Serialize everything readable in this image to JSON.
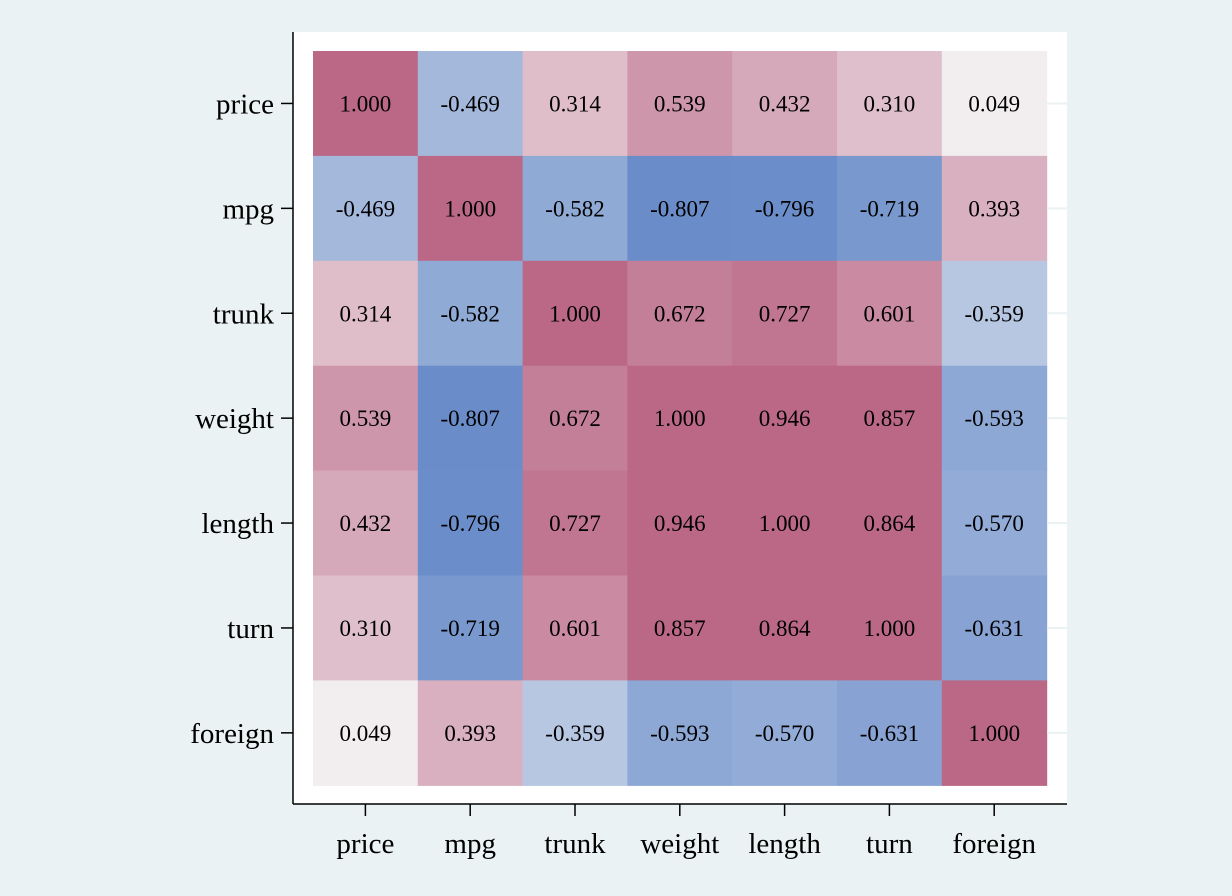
{
  "chart_data": {
    "type": "heatmap",
    "title": "",
    "xlabel": "",
    "ylabel": "",
    "x_categories": [
      "price",
      "mpg",
      "trunk",
      "weight",
      "length",
      "turn",
      "foreign"
    ],
    "y_categories": [
      "price",
      "mpg",
      "trunk",
      "weight",
      "length",
      "turn",
      "foreign"
    ],
    "values": [
      [
        1.0,
        -0.469,
        0.314,
        0.539,
        0.432,
        0.31,
        0.049
      ],
      [
        -0.469,
        1.0,
        -0.582,
        -0.807,
        -0.796,
        -0.719,
        0.393
      ],
      [
        0.314,
        -0.582,
        1.0,
        0.672,
        0.727,
        0.601,
        -0.359
      ],
      [
        0.539,
        -0.807,
        0.672,
        1.0,
        0.946,
        0.857,
        -0.593
      ],
      [
        0.432,
        -0.796,
        0.727,
        0.946,
        1.0,
        0.864,
        -0.57
      ],
      [
        0.31,
        -0.719,
        0.601,
        0.857,
        0.864,
        1.0,
        -0.631
      ],
      [
        0.049,
        0.393,
        -0.359,
        -0.593,
        -0.57,
        -0.631,
        1.0
      ]
    ],
    "value_format": "0.000",
    "grid": false,
    "legend": "none",
    "colors": {
      "background": "#eaf2f3",
      "plot_background": "#ffffff",
      "positive_strong": "#bb6886",
      "negative_strong": "#6a8dca",
      "neutral": "#f6f6f6"
    }
  }
}
